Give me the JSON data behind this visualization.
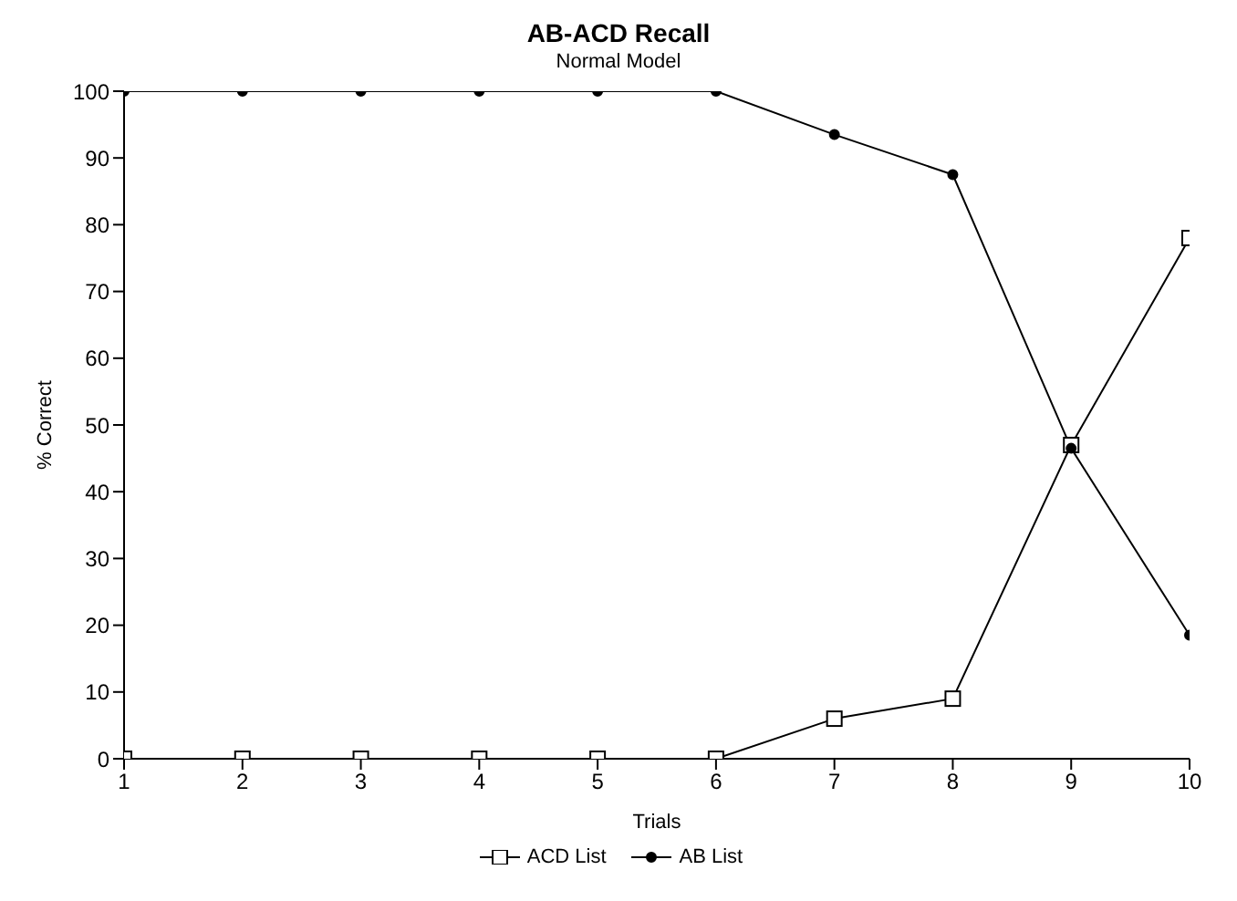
{
  "chart_data": {
    "type": "line",
    "title": "AB-ACD Recall",
    "subtitle": "Normal Model",
    "xlabel": "Trials",
    "ylabel": "% Correct",
    "x": [
      1,
      2,
      3,
      4,
      5,
      6,
      7,
      8,
      9,
      10
    ],
    "series": [
      {
        "name": "ACD List",
        "color": "#000000",
        "marker": "square",
        "values": [
          0,
          0,
          0,
          0,
          0,
          0,
          6,
          9,
          47,
          78
        ]
      },
      {
        "name": "AB List",
        "color": "#000000",
        "marker": "circle",
        "values": [
          100,
          100,
          100,
          100,
          100,
          100,
          93.5,
          87.5,
          46.5,
          18.5
        ]
      }
    ],
    "xlim": [
      1,
      10
    ],
    "xticks": [
      1,
      2,
      3,
      4,
      5,
      6,
      7,
      8,
      9,
      10
    ],
    "ylim": [
      0,
      100
    ],
    "yticks": [
      0,
      10,
      20,
      30,
      40,
      50,
      60,
      70,
      80,
      90,
      100
    ],
    "grid": false,
    "legend": "bottom"
  }
}
